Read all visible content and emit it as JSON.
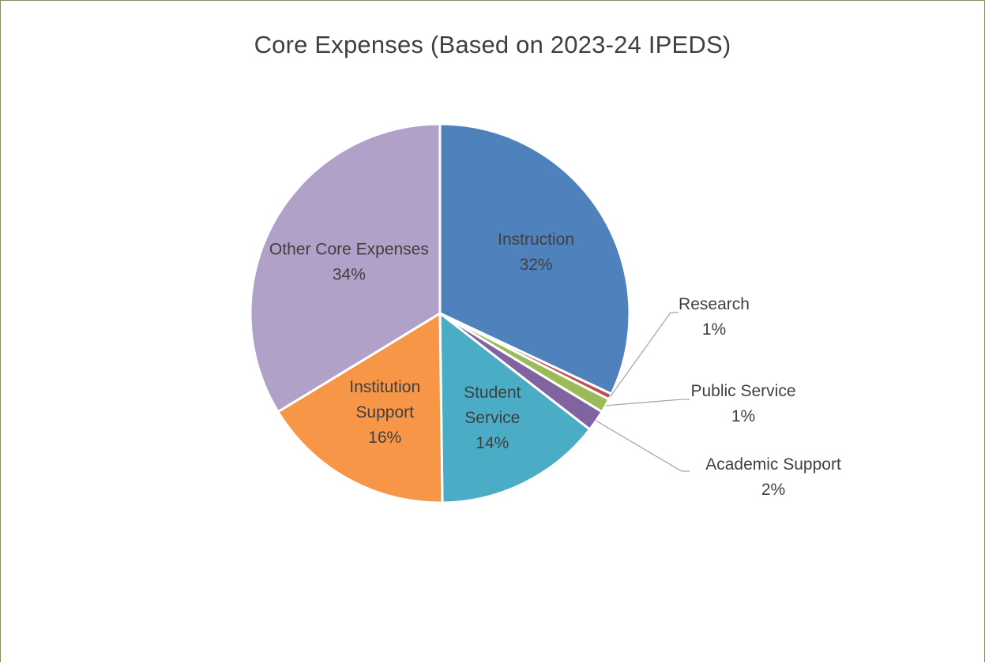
{
  "chart_data": {
    "type": "pie",
    "title": "Core Expenses (Based on 2023-24 IPEDS)",
    "slices": [
      {
        "name": "Instruction",
        "value": 32,
        "label": "32%",
        "color": "#4f81bd"
      },
      {
        "name": "Research",
        "value": 0.5,
        "label": "1%",
        "color": "#c0504d"
      },
      {
        "name": "Public Service",
        "value": 1.2,
        "label": "1%",
        "color": "#9bbb59"
      },
      {
        "name": "Academic Support",
        "value": 1.8,
        "label": "2%",
        "color": "#8064a2"
      },
      {
        "name": "Student Service",
        "value": 14.3,
        "label": "14%",
        "color": "#4bacc6"
      },
      {
        "name": "Institution Support",
        "value": 16.5,
        "label": "16%",
        "color": "#f79646"
      },
      {
        "name": "Other Core Expenses",
        "value": 33.7,
        "label": "34%",
        "color": "#b1a0c7"
      }
    ],
    "legend": "none"
  }
}
